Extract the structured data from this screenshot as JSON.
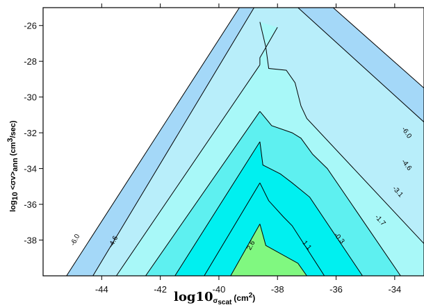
{
  "chart_data": {
    "type": "contour",
    "xlabel": {
      "main": "log10",
      "sub": "σ",
      "sub2": "scat",
      "unit": "(cm",
      "sup": "2",
      "close": ")"
    },
    "ylabel": {
      "main": "log",
      "sub": "10",
      "mid": "<σv>",
      "sub2": "ann",
      "unit": "(cm",
      "sup": "3",
      "close": "/sec)"
    },
    "xlim": [
      -46.0,
      -33.0
    ],
    "ylim": [
      -40.0,
      -25.0
    ],
    "xticks": [
      -44,
      -42,
      -40,
      -38,
      -36,
      -34
    ],
    "yticks": [
      -26,
      -28,
      -30,
      -32,
      -34,
      -36,
      -38
    ],
    "xtick_labels": [
      "-44",
      "-42",
      "-40",
      "-38",
      "-36",
      "-34"
    ],
    "ytick_labels": [
      "-26",
      "-28",
      "-30",
      "-32",
      "-34",
      "-36",
      "-38"
    ],
    "contour_levels": [
      "-6.0",
      "-4.6",
      "-3.1",
      "-1.7",
      "-0.3",
      "1.1",
      "2.6"
    ],
    "fill_colors": {
      "blue_outer": "#a4d8f8",
      "light_blue": "#b8eefa",
      "cyan_mid": "#a8f8f8",
      "cyan": "#5ef0f0",
      "cyan_bright": "#00f0f0",
      "green": "#80f880",
      "background": "#ffffff",
      "line": "#000000"
    }
  }
}
